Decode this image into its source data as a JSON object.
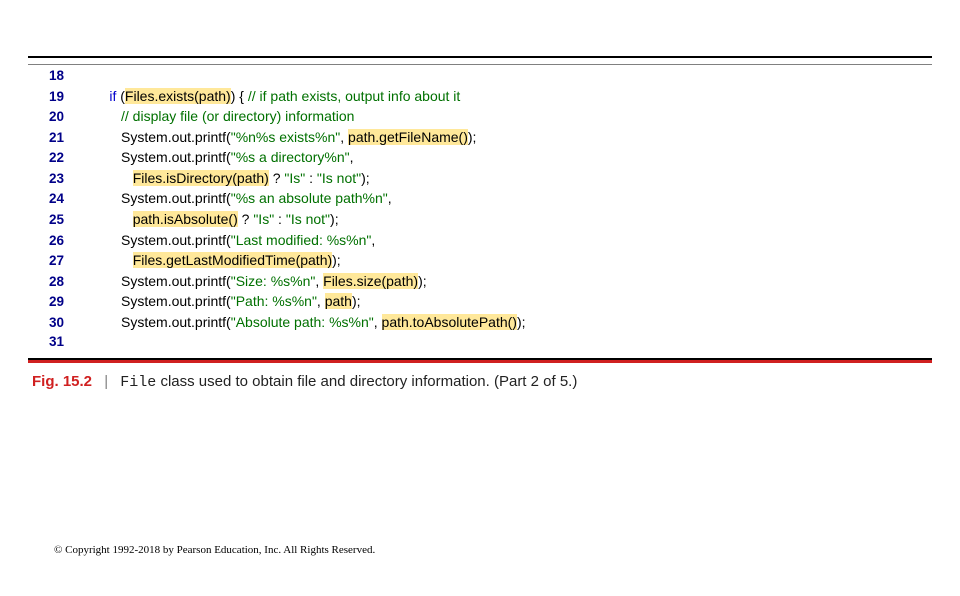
{
  "figure": {
    "label": "Fig. 15.2",
    "separator": "|",
    "caption_mono": "File",
    "caption_rest": " class used to obtain file and directory information. (Part 2 of 5.)"
  },
  "copyright": "© Copyright 1992-2018 by Pearson Education, Inc. All Rights Reserved.",
  "lines": [
    {
      "n": "18",
      "indent": "      ",
      "segs": []
    },
    {
      "n": "19",
      "indent": "      ",
      "segs": [
        {
          "t": "if",
          "c": "kw"
        },
        {
          "t": " ("
        },
        {
          "t": "Files.exists(path)",
          "c": "hl"
        },
        {
          "t": ") { "
        },
        {
          "t": "// if path exists, output info about it",
          "c": "cmt"
        }
      ]
    },
    {
      "n": "20",
      "indent": "         ",
      "segs": [
        {
          "t": "// display file (or directory) information",
          "c": "cmt"
        }
      ]
    },
    {
      "n": "21",
      "indent": "         ",
      "segs": [
        {
          "t": "System.out.printf("
        },
        {
          "t": "\"%n%s exists%n\"",
          "c": "str"
        },
        {
          "t": ", "
        },
        {
          "t": "path.getFileName()",
          "c": "hl"
        },
        {
          "t": ");"
        }
      ]
    },
    {
      "n": "22",
      "indent": "         ",
      "segs": [
        {
          "t": "System.out.printf("
        },
        {
          "t": "\"%s a directory%n\"",
          "c": "str"
        },
        {
          "t": ","
        }
      ]
    },
    {
      "n": "23",
      "indent": "            ",
      "segs": [
        {
          "t": "Files.isDirectory(path)",
          "c": "hl"
        },
        {
          "t": " ? "
        },
        {
          "t": "\"Is\"",
          "c": "str"
        },
        {
          "t": " : "
        },
        {
          "t": "\"Is not\"",
          "c": "str"
        },
        {
          "t": ");"
        }
      ]
    },
    {
      "n": "24",
      "indent": "         ",
      "segs": [
        {
          "t": "System.out.printf("
        },
        {
          "t": "\"%s an absolute path%n\"",
          "c": "str"
        },
        {
          "t": ","
        }
      ]
    },
    {
      "n": "25",
      "indent": "            ",
      "segs": [
        {
          "t": "path.isAbsolute()",
          "c": "hl"
        },
        {
          "t": " ? "
        },
        {
          "t": "\"Is\"",
          "c": "str"
        },
        {
          "t": " : "
        },
        {
          "t": "\"Is not\"",
          "c": "str"
        },
        {
          "t": ");"
        }
      ]
    },
    {
      "n": "26",
      "indent": "         ",
      "segs": [
        {
          "t": "System.out.printf("
        },
        {
          "t": "\"Last modified: %s%n\"",
          "c": "str"
        },
        {
          "t": ","
        }
      ]
    },
    {
      "n": "27",
      "indent": "            ",
      "segs": [
        {
          "t": "Files.getLastModifiedTime(path)",
          "c": "hl"
        },
        {
          "t": ");"
        }
      ]
    },
    {
      "n": "28",
      "indent": "         ",
      "segs": [
        {
          "t": "System.out.printf("
        },
        {
          "t": "\"Size: %s%n\"",
          "c": "str"
        },
        {
          "t": ", "
        },
        {
          "t": "Files.size(path)",
          "c": "hl"
        },
        {
          "t": ");"
        }
      ]
    },
    {
      "n": "29",
      "indent": "         ",
      "segs": [
        {
          "t": "System.out.printf("
        },
        {
          "t": "\"Path: %s%n\"",
          "c": "str"
        },
        {
          "t": ", "
        },
        {
          "t": "path",
          "c": "hl"
        },
        {
          "t": ");"
        }
      ]
    },
    {
      "n": "30",
      "indent": "         ",
      "segs": [
        {
          "t": "System.out.printf("
        },
        {
          "t": "\"Absolute path: %s%n\"",
          "c": "str"
        },
        {
          "t": ", "
        },
        {
          "t": "path.toAbsolutePath()",
          "c": "hl"
        },
        {
          "t": ");"
        }
      ]
    },
    {
      "n": "31",
      "indent": "",
      "segs": []
    }
  ],
  "colors": {
    "keyword": "#0000cc",
    "string": "#007000",
    "comment": "#007000",
    "highlight_bg": "#ffe89a",
    "gutter_text": "#000088",
    "caption_accent": "#d02020",
    "border_top": "#000000"
  }
}
